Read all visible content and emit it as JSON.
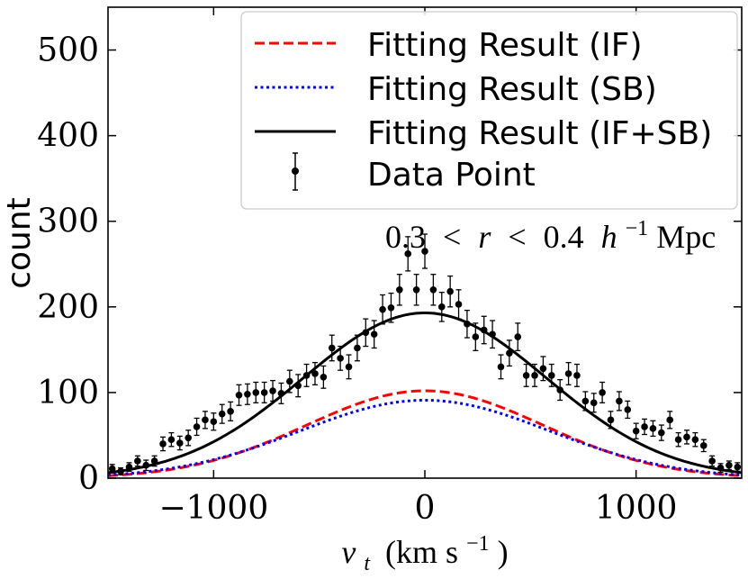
{
  "chart_data": {
    "type": "line",
    "title": "",
    "xlabel_var": "v",
    "xlabel_sub": "t",
    "xlabel_units_a": "(km s",
    "xlabel_units_exp": "−1",
    "xlabel_units_b": ")",
    "ylabel": "count",
    "xlim": [
      -1500,
      1500
    ],
    "ylim": [
      0,
      550
    ],
    "xticks": [
      -1000,
      0,
      1000
    ],
    "xtick_labels": [
      "−1000",
      "0",
      "1000"
    ],
    "yticks": [
      0,
      100,
      200,
      300,
      400,
      500
    ],
    "ytick_labels": [
      "0",
      "100",
      "200",
      "300",
      "400",
      "500"
    ],
    "annotation": {
      "lo": "0.3",
      "lt1": "<",
      "var": "r",
      "lt2": "<",
      "hi": "0.4",
      "h": "h",
      "hexp": "−1",
      "units": "Mpc"
    },
    "legend": {
      "position": "upper-right",
      "entries": [
        "Fitting Result (IF)",
        "Fitting Result (SB)",
        "Fitting Result (IF+SB)",
        "Data Point"
      ]
    },
    "series": [
      {
        "name": "Fitting Result (IF)",
        "style": "dashed",
        "color": "#ff0000",
        "amplitude": 102,
        "sigma": 560
      },
      {
        "name": "Fitting Result (SB)",
        "style": "dotted",
        "color": "#0000ff",
        "amplitude": 91,
        "sigma": 590
      },
      {
        "name": "Fitting Result (IF+SB)",
        "style": "solid",
        "color": "#000000",
        "amplitude": 193,
        "sigma": 575
      }
    ],
    "data_points": {
      "name": "Data Point",
      "color": "#000000",
      "x": [
        -1480,
        -1440,
        -1400,
        -1360,
        -1320,
        -1280,
        -1240,
        -1200,
        -1160,
        -1120,
        -1080,
        -1040,
        -1000,
        -960,
        -920,
        -880,
        -840,
        -800,
        -760,
        -720,
        -680,
        -640,
        -600,
        -560,
        -520,
        -480,
        -440,
        -400,
        -360,
        -320,
        -280,
        -240,
        -200,
        -160,
        -120,
        -80,
        -40,
        0,
        40,
        80,
        120,
        160,
        200,
        240,
        280,
        320,
        360,
        400,
        440,
        480,
        520,
        560,
        600,
        640,
        680,
        720,
        760,
        800,
        840,
        880,
        920,
        960,
        1000,
        1040,
        1080,
        1120,
        1160,
        1200,
        1240,
        1280,
        1320,
        1360,
        1400,
        1440,
        1480
      ],
      "y": [
        11,
        8,
        13,
        20,
        15,
        20,
        40,
        45,
        41,
        47,
        60,
        68,
        66,
        75,
        78,
        97,
        98,
        100,
        100,
        102,
        99,
        113,
        108,
        120,
        122,
        118,
        152,
        140,
        130,
        152,
        170,
        168,
        197,
        199,
        220,
        262,
        220,
        265,
        220,
        200,
        218,
        203,
        180,
        165,
        173,
        168,
        130,
        146,
        165,
        120,
        120,
        128,
        120,
        103,
        122,
        120,
        90,
        88,
        100,
        68,
        90,
        80,
        55,
        60,
        58,
        53,
        68,
        45,
        48,
        45,
        38,
        20,
        12,
        15,
        13
      ],
      "err": [
        5,
        4,
        5,
        6,
        6,
        6,
        8,
        8,
        8,
        9,
        10,
        10,
        10,
        11,
        11,
        12,
        12,
        12,
        12,
        12,
        12,
        13,
        13,
        13,
        13,
        13,
        15,
        14,
        14,
        15,
        16,
        16,
        17,
        17,
        18,
        20,
        18,
        20,
        18,
        17,
        18,
        17,
        16,
        16,
        16,
        16,
        14,
        15,
        16,
        13,
        13,
        14,
        13,
        12,
        13,
        13,
        11,
        11,
        12,
        10,
        11,
        10,
        9,
        9,
        9,
        9,
        10,
        8,
        8,
        8,
        7,
        6,
        5,
        5,
        5
      ]
    }
  }
}
